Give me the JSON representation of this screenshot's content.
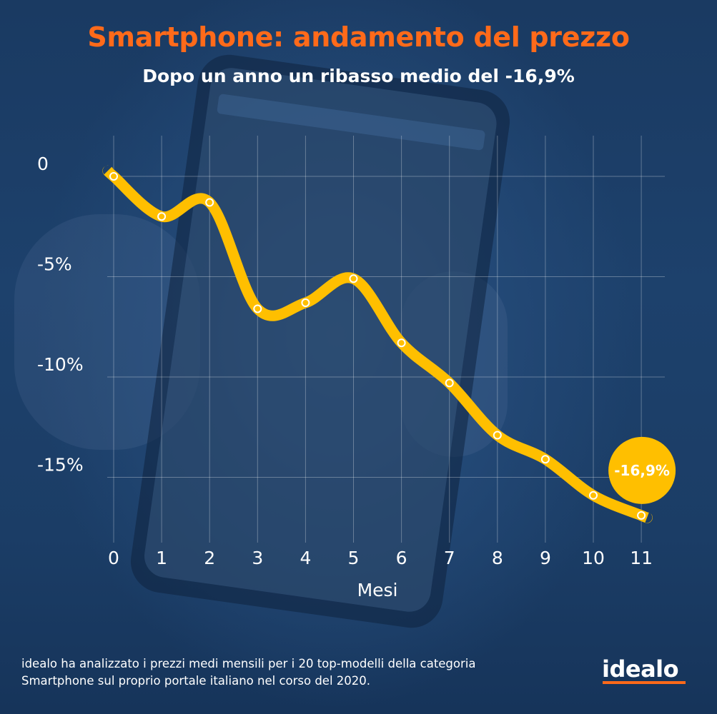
{
  "header": {
    "title": "Smartphone: andamento del prezzo",
    "subtitle": "Dopo un anno un ribasso medio del -16,9%"
  },
  "chart_data": {
    "type": "line",
    "title": "Smartphone: andamento del prezzo",
    "subtitle": "Dopo un anno un ribasso medio del -16,9%",
    "xlabel": "Mesi",
    "ylabel": "",
    "x": [
      0,
      1,
      2,
      3,
      4,
      5,
      6,
      7,
      8,
      9,
      10,
      11
    ],
    "x_tick_labels": [
      "0",
      "1",
      "2",
      "3",
      "4",
      "5",
      "6",
      "7",
      "8",
      "9",
      "10",
      "11"
    ],
    "series": [
      {
        "values": [
          0.0,
          -2.0,
          -1.3,
          -6.6,
          -6.3,
          -5.1,
          -8.3,
          -10.3,
          -12.9,
          -14.1,
          -15.9,
          -16.9
        ]
      }
    ],
    "y_ticks": [
      0,
      -5,
      -10,
      -15
    ],
    "y_tick_labels": [
      "0",
      "-5%",
      "-10%",
      "-15%"
    ],
    "ylim": [
      -18,
      0.8
    ],
    "grid": "horizontal",
    "annotation": {
      "text": "-16,9%",
      "x": 11,
      "y": -16.9
    },
    "colors": {
      "line": "#ffbf00",
      "badge": "#ffbf00",
      "title": "#ff6a1a",
      "grid": "#ffffff"
    }
  },
  "footer": {
    "note": "idealo ha analizzato i prezzi medi mensili per i 20 top-modelli della categoria Smartphone sul proprio portale italiano nel corso del 2020.",
    "logo": "idealo"
  }
}
